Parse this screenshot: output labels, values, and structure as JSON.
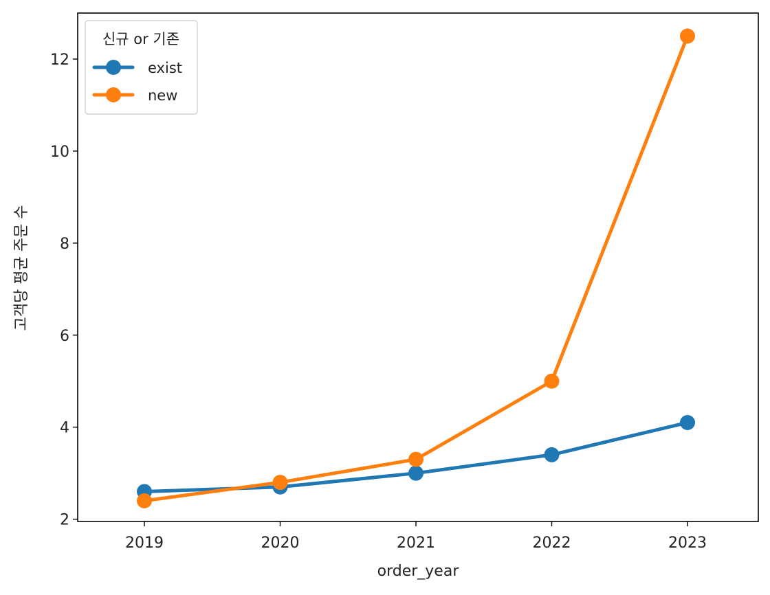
{
  "chart_data": {
    "type": "line",
    "title": "",
    "xlabel": "order_year",
    "ylabel": "고객당 평균 주문 수",
    "categories": [
      "2019",
      "2020",
      "2021",
      "2022",
      "2023"
    ],
    "yticks": [
      2,
      4,
      6,
      8,
      10,
      12
    ],
    "ylim": [
      1.95,
      13.0
    ],
    "grid": false,
    "legend": {
      "title": "신규 or 기존",
      "placement": "top-left"
    },
    "series": [
      {
        "name": "exist",
        "color": "#1f77b4",
        "values": [
          2.6,
          2.7,
          3.0,
          3.4,
          4.1
        ]
      },
      {
        "name": "new",
        "color": "#ff7f0e",
        "values": [
          2.4,
          2.8,
          3.3,
          5.0,
          12.5
        ]
      }
    ]
  }
}
